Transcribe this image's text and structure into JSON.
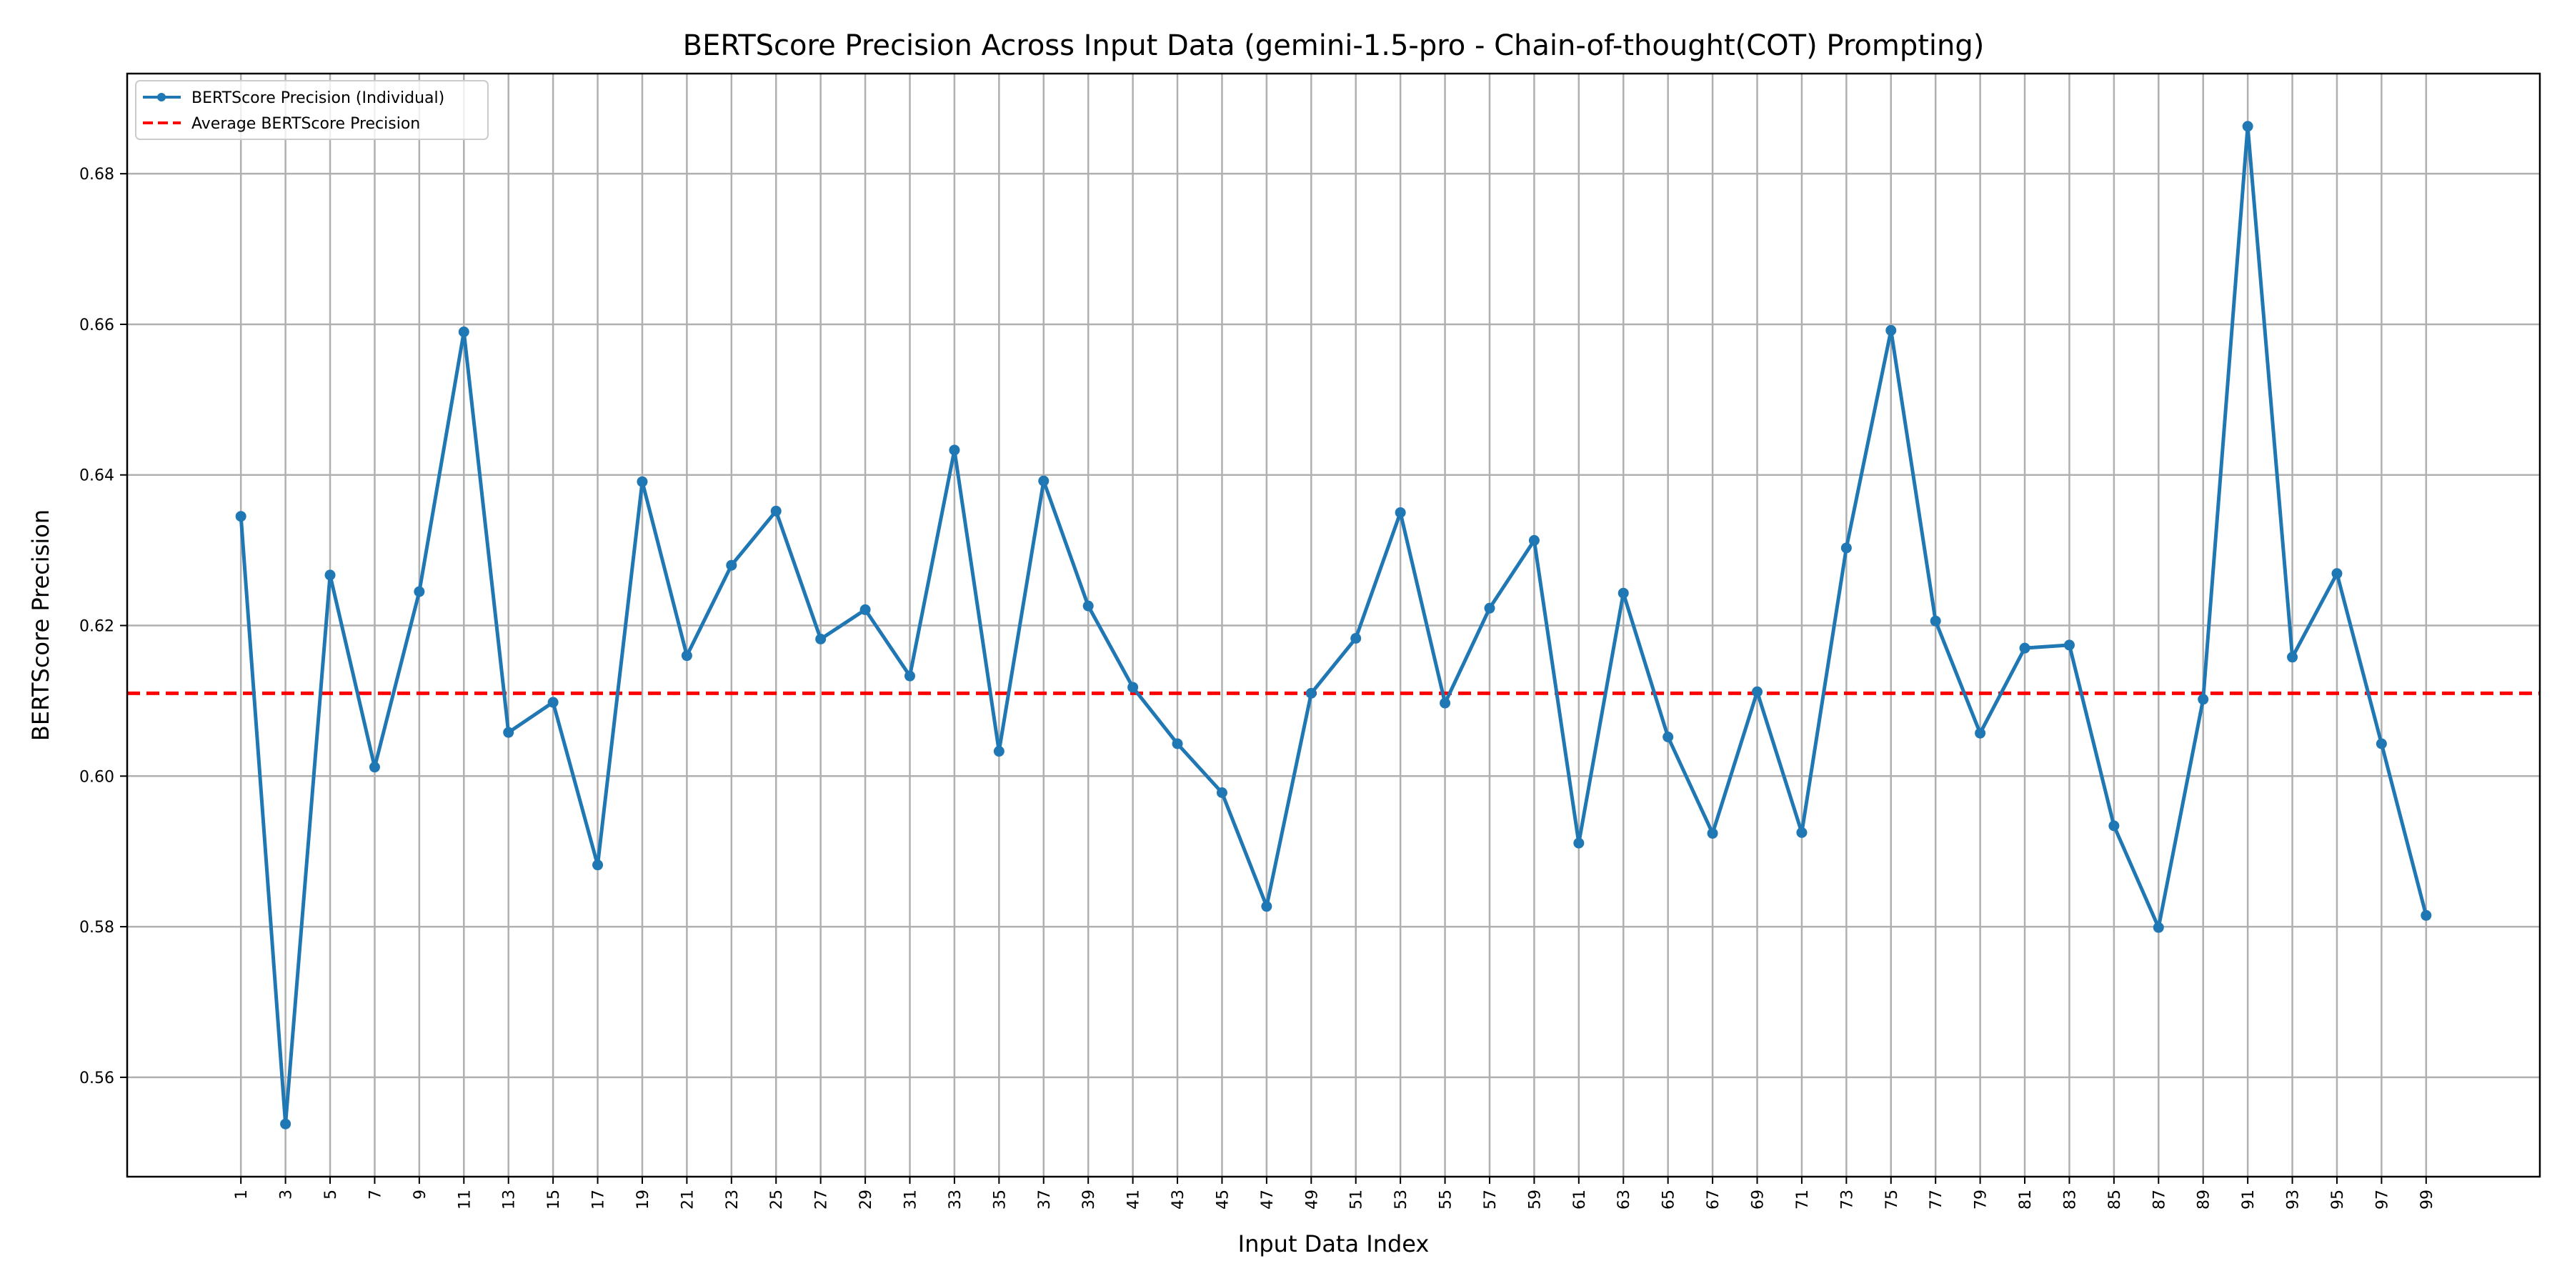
{
  "chart_data": {
    "type": "line",
    "title": "BERTScore Precision Across Input Data (gemini-1.5-pro - Chain-of-thought(COT) Prompting)",
    "xlabel": "Input Data Index",
    "ylabel": "BERTScore Precision",
    "x": [
      1,
      3,
      5,
      7,
      9,
      11,
      13,
      15,
      17,
      19,
      21,
      23,
      25,
      27,
      29,
      31,
      33,
      35,
      37,
      39,
      41,
      43,
      45,
      47,
      49,
      51,
      53,
      55,
      57,
      59,
      61,
      63,
      65,
      67,
      69,
      71,
      73,
      75,
      77,
      79,
      81,
      83,
      85,
      87,
      89,
      91,
      93,
      95,
      97,
      99
    ],
    "series": [
      {
        "name": "BERTScore Precision (Individual)",
        "color": "#1f77b4",
        "values": [
          0.6345,
          0.5538,
          0.6267,
          0.6012,
          0.6245,
          0.659,
          0.6058,
          0.6098,
          0.5882,
          0.6391,
          0.616,
          0.628,
          0.6352,
          0.6182,
          0.6221,
          0.6133,
          0.6433,
          0.6033,
          0.6392,
          0.6226,
          0.6118,
          0.6043,
          0.5978,
          0.5827,
          0.611,
          0.6183,
          0.635,
          0.6097,
          0.6223,
          0.6313,
          0.5911,
          0.6243,
          0.6052,
          0.5924,
          0.6112,
          0.5925,
          0.6303,
          0.6592,
          0.6206,
          0.6057,
          0.617,
          0.6174,
          0.5934,
          0.5799,
          0.6102,
          0.6863,
          0.6158,
          0.6269,
          0.6043,
          0.5815
        ]
      }
    ],
    "reference_lines": [
      {
        "name": "Average BERTScore Precision",
        "value": 0.611,
        "color": "#ff0000",
        "style": "dashed"
      }
    ],
    "xlim": [
      -4.1,
      104.1
    ],
    "ylim": [
      0.5468,
      0.6933
    ],
    "yticks": [
      0.56,
      0.58,
      0.6,
      0.62,
      0.64,
      0.66,
      0.68
    ],
    "ytick_labels": [
      "0.56",
      "0.58",
      "0.60",
      "0.62",
      "0.64",
      "0.66",
      "0.68"
    ],
    "grid": true,
    "legend_position": "top-left"
  }
}
